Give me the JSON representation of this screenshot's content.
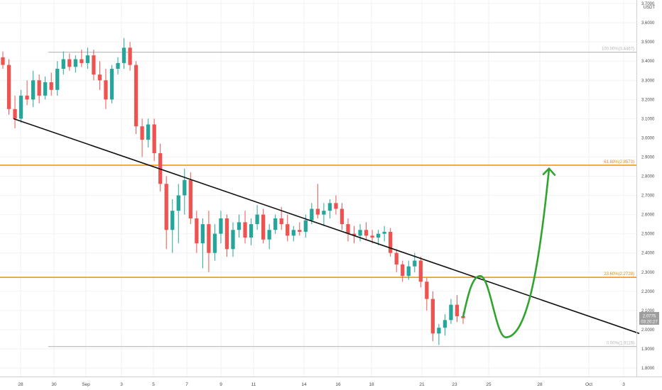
{
  "chart_data": {
    "type": "candlestick",
    "currency_label": "USDT",
    "y_ticks": [
      "1.8000",
      "1.9000",
      "2.0000",
      "2.1000",
      "2.2000",
      "2.3000",
      "2.4000",
      "2.5000",
      "2.6000",
      "2.7000",
      "2.8000",
      "2.9000",
      "3.0000",
      "3.1000",
      "3.2000",
      "3.3000",
      "3.4000",
      "3.5000",
      "3.6000",
      "3.7000"
    ],
    "x_ticks": [
      "28",
      "30",
      "Sep",
      "3",
      "5",
      "7",
      "9",
      "11",
      "14",
      "16",
      "18",
      "21",
      "23",
      "25",
      "28",
      "Oct",
      "3"
    ],
    "ylim": [
      1.75,
      3.77
    ],
    "fib_levels": [
      {
        "label": "100.00%(3.4467)",
        "value": 3.4467,
        "color": "#b0b0b0"
      },
      {
        "label": "61.80%(2.8573)",
        "value": 2.8573,
        "color": "#f0a020"
      },
      {
        "label": "23.60%(2.2728)",
        "value": 2.2728,
        "color": "#f0a020"
      },
      {
        "label": "0.00%(1.9119)",
        "value": 1.9119,
        "color": "#b0b0b0"
      }
    ],
    "current_price": "2.0775",
    "countdown": "03:20:27",
    "trendline": {
      "start": [
        "28",
        3.1
      ],
      "end": [
        "3",
        1.98
      ]
    },
    "projection": {
      "peak": 2.28,
      "trough": 1.96,
      "target": 2.84
    },
    "candles": [
      [
        3.42,
        3.45,
        3.36,
        3.38
      ],
      [
        3.38,
        3.41,
        3.12,
        3.15
      ],
      [
        3.15,
        3.22,
        3.05,
        3.1
      ],
      [
        3.1,
        3.25,
        3.08,
        3.22
      ],
      [
        3.22,
        3.3,
        3.17,
        3.2
      ],
      [
        3.2,
        3.35,
        3.16,
        3.3
      ],
      [
        3.3,
        3.33,
        3.18,
        3.22
      ],
      [
        3.22,
        3.32,
        3.2,
        3.29
      ],
      [
        3.29,
        3.34,
        3.22,
        3.25
      ],
      [
        3.25,
        3.4,
        3.22,
        3.36
      ],
      [
        3.36,
        3.45,
        3.33,
        3.41
      ],
      [
        3.41,
        3.44,
        3.35,
        3.37
      ],
      [
        3.37,
        3.43,
        3.34,
        3.41
      ],
      [
        3.41,
        3.46,
        3.37,
        3.39
      ],
      [
        3.39,
        3.47,
        3.36,
        3.43
      ],
      [
        3.43,
        3.46,
        3.3,
        3.33
      ],
      [
        3.33,
        3.4,
        3.25,
        3.3
      ],
      [
        3.3,
        3.36,
        3.15,
        3.2
      ],
      [
        3.2,
        3.38,
        3.18,
        3.36
      ],
      [
        3.36,
        3.42,
        3.33,
        3.39
      ],
      [
        3.39,
        3.52,
        3.36,
        3.47
      ],
      [
        3.47,
        3.5,
        3.35,
        3.38
      ],
      [
        3.38,
        3.4,
        3.02,
        3.06
      ],
      [
        3.06,
        3.1,
        2.9,
        2.99
      ],
      [
        2.99,
        3.1,
        2.95,
        3.07
      ],
      [
        3.07,
        3.1,
        2.88,
        2.92
      ],
      [
        2.92,
        2.97,
        2.72,
        2.76
      ],
      [
        2.76,
        2.8,
        2.42,
        2.52
      ],
      [
        2.52,
        2.68,
        2.4,
        2.62
      ],
      [
        2.62,
        2.76,
        2.45,
        2.7
      ],
      [
        2.7,
        2.84,
        2.6,
        2.78
      ],
      [
        2.78,
        2.82,
        2.55,
        2.58
      ],
      [
        2.58,
        2.62,
        2.4,
        2.45
      ],
      [
        2.45,
        2.58,
        2.32,
        2.55
      ],
      [
        2.55,
        2.62,
        2.3,
        2.4
      ],
      [
        2.4,
        2.55,
        2.36,
        2.5
      ],
      [
        2.5,
        2.62,
        2.45,
        2.58
      ],
      [
        2.58,
        2.6,
        2.38,
        2.42
      ],
      [
        2.42,
        2.56,
        2.38,
        2.52
      ],
      [
        2.52,
        2.6,
        2.48,
        2.56
      ],
      [
        2.56,
        2.62,
        2.45,
        2.48
      ],
      [
        2.48,
        2.58,
        2.44,
        2.55
      ],
      [
        2.55,
        2.65,
        2.52,
        2.6
      ],
      [
        2.6,
        2.63,
        2.45,
        2.47
      ],
      [
        2.47,
        2.55,
        2.42,
        2.52
      ],
      [
        2.52,
        2.6,
        2.5,
        2.58
      ],
      [
        2.58,
        2.64,
        2.52,
        2.55
      ],
      [
        2.55,
        2.6,
        2.46,
        2.49
      ],
      [
        2.49,
        2.54,
        2.46,
        2.52
      ],
      [
        2.52,
        2.56,
        2.49,
        2.51
      ],
      [
        2.51,
        2.6,
        2.48,
        2.57
      ],
      [
        2.57,
        2.66,
        2.55,
        2.63
      ],
      [
        2.63,
        2.76,
        2.58,
        2.6
      ],
      [
        2.6,
        2.66,
        2.54,
        2.62
      ],
      [
        2.62,
        2.68,
        2.58,
        2.66
      ],
      [
        2.66,
        2.7,
        2.6,
        2.63
      ],
      [
        2.63,
        2.66,
        2.52,
        2.55
      ],
      [
        2.55,
        2.58,
        2.46,
        2.5
      ],
      [
        2.5,
        2.54,
        2.45,
        2.49
      ],
      [
        2.49,
        2.55,
        2.46,
        2.52
      ],
      [
        2.52,
        2.56,
        2.47,
        2.49
      ],
      [
        2.49,
        2.52,
        2.45,
        2.48
      ],
      [
        2.48,
        2.52,
        2.44,
        2.5
      ],
      [
        2.5,
        2.54,
        2.46,
        2.51
      ],
      [
        2.51,
        2.53,
        2.38,
        2.4
      ],
      [
        2.4,
        2.42,
        2.3,
        2.34
      ],
      [
        2.34,
        2.36,
        2.25,
        2.28
      ],
      [
        2.28,
        2.36,
        2.26,
        2.33
      ],
      [
        2.33,
        2.4,
        2.3,
        2.36
      ],
      [
        2.36,
        2.38,
        2.22,
        2.25
      ],
      [
        2.25,
        2.27,
        2.1,
        2.16
      ],
      [
        2.16,
        2.2,
        1.94,
        1.98
      ],
      [
        1.98,
        2.03,
        1.92,
        2.01
      ],
      [
        2.01,
        2.08,
        1.97,
        2.05
      ],
      [
        2.05,
        2.16,
        2.03,
        2.13
      ],
      [
        2.13,
        2.18,
        2.04,
        2.07
      ],
      [
        2.07,
        2.09,
        2.03,
        2.06
      ]
    ]
  }
}
